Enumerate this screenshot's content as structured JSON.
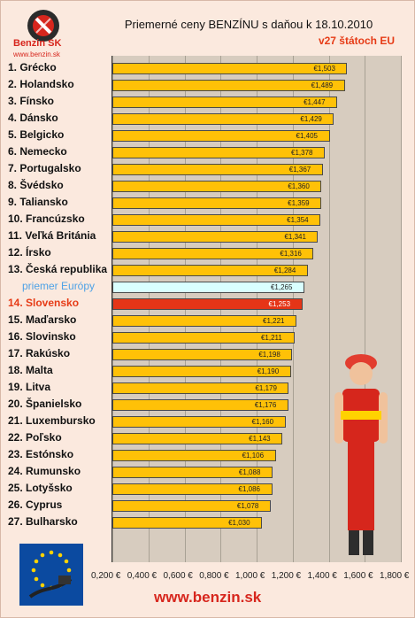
{
  "logo": {
    "text": "Benzin SK",
    "url": "www.benzin.sk"
  },
  "footer": {
    "url": "www.benzin.sk"
  },
  "chart_data": {
    "type": "bar",
    "orientation": "horizontal",
    "title": "Priemerné ceny BENZÍNU s daňou k 18.10.2010",
    "subtitle": "v27 štátoch EU",
    "xlim": [
      0.2,
      1.8
    ],
    "ticks": [
      "0,200 €",
      "0,400 €",
      "0,600 €",
      "0,800 €",
      "1,000 €",
      "1,200 €",
      "1,400 €",
      "1,600 €",
      "1,800 €"
    ],
    "categories": [
      "1. Grécko",
      "2. Holandsko",
      "3. Fínsko",
      "4. Dánsko",
      "5. Belgicko",
      "6. Nemecko",
      "7. Portugalsko",
      "8. Švédsko",
      "9. Taliansko",
      "10. Francúzsko",
      "11. Veľká Británia",
      "12. Írsko",
      "13. Česká republika",
      "priemer Európy",
      "14. Slovensko",
      "15. Maďarsko",
      "16. Slovinsko",
      "17. Rakúsko",
      "18. Malta",
      "19. Litva",
      "20. Španielsko",
      "21. Luxembursko",
      "22. Poľsko",
      "23. Estónsko",
      "24. Rumunsko",
      "25. Lotyšsko",
      "26. Cyprus",
      "27. Bulharsko"
    ],
    "values": [
      1.503,
      1.489,
      1.447,
      1.429,
      1.405,
      1.378,
      1.367,
      1.36,
      1.359,
      1.354,
      1.341,
      1.316,
      1.284,
      1.265,
      1.253,
      1.221,
      1.211,
      1.198,
      1.19,
      1.179,
      1.176,
      1.16,
      1.143,
      1.106,
      1.088,
      1.086,
      1.078,
      1.03
    ],
    "labels": [
      "€1,503",
      "€1,489",
      "€1,447",
      "€1,429",
      "€1,405",
      "€1,378",
      "€1,367",
      "€1,360",
      "€1,359",
      "€1,354",
      "€1,341",
      "€1,316",
      "€1,284",
      "€1,265",
      "€1,253",
      "€1,221",
      "€1,211",
      "€1,198",
      "€1,190",
      "€1,179",
      "€1,176",
      "€1,160",
      "€1,143",
      "€1,106",
      "€1,088",
      "€1,086",
      "€1,078",
      "€1,030"
    ],
    "highlight_average": "priemer Európy",
    "highlight_country": "14. Slovensko",
    "colors": {
      "bar": "#ffc107",
      "average": "#d9ffff",
      "highlight": "#e53517",
      "plot": "#d7ccbf"
    }
  }
}
